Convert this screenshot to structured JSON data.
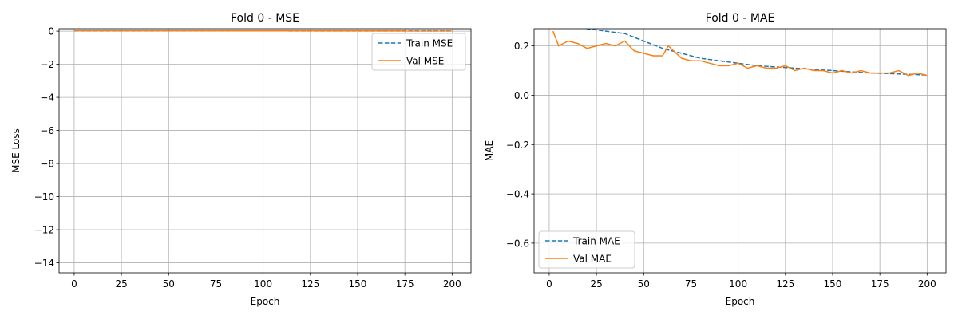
{
  "chart_data": [
    {
      "type": "line",
      "title": "Fold 0 - MSE",
      "xlabel": "Epoch",
      "ylabel": "MSE Loss",
      "xlim": [
        -8,
        210
      ],
      "ylim": [
        -14.6,
        0.15
      ],
      "xticks": [
        0,
        25,
        50,
        75,
        100,
        125,
        150,
        175,
        200
      ],
      "yticks": [
        0,
        -2,
        -4,
        -6,
        -8,
        -10,
        -12,
        -14
      ],
      "grid": true,
      "legend_position": "top-right",
      "series": [
        {
          "name": "Train MSE",
          "color": "#1f77b4",
          "style": "dashed",
          "x": [
            0,
            200
          ],
          "y": [
            0.02,
            0.01
          ]
        },
        {
          "name": "Val MSE",
          "color": "#ff7f0e",
          "style": "solid",
          "x": [
            0,
            200
          ],
          "y": [
            0.03,
            0.01
          ]
        }
      ]
    },
    {
      "type": "line",
      "title": "Fold 0 - MAE",
      "xlabel": "Epoch",
      "ylabel": "MAE",
      "xlim": [
        -8,
        210
      ],
      "ylim": [
        -0.72,
        0.27
      ],
      "xticks": [
        0,
        25,
        50,
        75,
        100,
        125,
        150,
        175,
        200
      ],
      "yticks": [
        0.2,
        0.0,
        -0.2,
        -0.4,
        -0.6
      ],
      "grid": true,
      "legend_position": "bottom-left",
      "series": [
        {
          "name": "Train MAE",
          "color": "#1f77b4",
          "style": "dashed",
          "x": [
            0,
            10,
            20,
            30,
            40,
            50,
            60,
            70,
            80,
            90,
            100,
            110,
            120,
            130,
            140,
            150,
            160,
            170,
            180,
            190,
            200
          ],
          "y": [
            0.3,
            0.28,
            0.27,
            0.26,
            0.25,
            0.22,
            0.19,
            0.17,
            0.15,
            0.14,
            0.13,
            0.12,
            0.115,
            0.11,
            0.105,
            0.1,
            0.095,
            0.09,
            0.088,
            0.085,
            0.082
          ]
        },
        {
          "name": "Val MAE",
          "color": "#ff7f0e",
          "style": "solid",
          "x": [
            2,
            5,
            10,
            15,
            20,
            25,
            30,
            35,
            40,
            45,
            50,
            55,
            60,
            63,
            70,
            75,
            80,
            85,
            90,
            95,
            100,
            105,
            110,
            115,
            120,
            125,
            130,
            135,
            140,
            145,
            150,
            155,
            160,
            165,
            170,
            175,
            180,
            185,
            190,
            195,
            200
          ],
          "y": [
            0.26,
            0.2,
            0.22,
            0.21,
            0.19,
            0.2,
            0.21,
            0.2,
            0.22,
            0.18,
            0.17,
            0.16,
            0.16,
            0.2,
            0.15,
            0.14,
            0.14,
            0.13,
            0.12,
            0.12,
            0.13,
            0.11,
            0.12,
            0.11,
            0.11,
            0.12,
            0.1,
            0.11,
            0.1,
            0.1,
            0.09,
            0.1,
            0.09,
            0.1,
            0.09,
            0.09,
            0.09,
            0.1,
            0.08,
            0.09,
            0.08
          ]
        }
      ]
    }
  ]
}
